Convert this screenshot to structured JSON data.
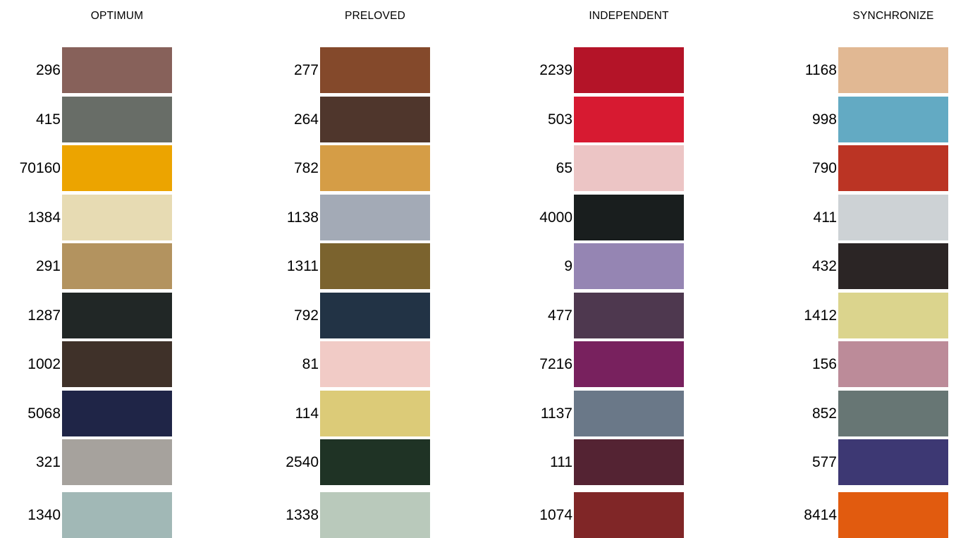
{
  "columns": [
    {
      "title": "OPTIMUM",
      "swatches": [
        {
          "code": "296",
          "color": "#87615a"
        },
        {
          "code": "415",
          "color": "#686d67"
        },
        {
          "code": "70160",
          "color": "#eca400"
        },
        {
          "code": "1384",
          "color": "#e7dbb3"
        },
        {
          "code": "291",
          "color": "#b3935f"
        },
        {
          "code": "1287",
          "color": "#212726"
        },
        {
          "code": "1002",
          "color": "#3f3129"
        },
        {
          "code": "5068",
          "color": "#1f2547"
        },
        {
          "code": "321",
          "color": "#a6a29d"
        },
        {
          "code": "1340",
          "color": "#a1b8b6"
        }
      ]
    },
    {
      "title": "PRELOVED",
      "swatches": [
        {
          "code": "277",
          "color": "#84492b"
        },
        {
          "code": "264",
          "color": "#4f362c"
        },
        {
          "code": "782",
          "color": "#d59d46"
        },
        {
          "code": "1138",
          "color": "#a3aab6"
        },
        {
          "code": "1311",
          "color": "#7b632e"
        },
        {
          "code": "792",
          "color": "#223345"
        },
        {
          "code": "81",
          "color": "#f1cbc6"
        },
        {
          "code": "114",
          "color": "#dccb78"
        },
        {
          "code": "2540",
          "color": "#1f3325"
        },
        {
          "code": "1338",
          "color": "#b9c9bb"
        }
      ]
    },
    {
      "title": "INDEPENDENT",
      "swatches": [
        {
          "code": "2239",
          "color": "#b41428"
        },
        {
          "code": "503",
          "color": "#d71a31"
        },
        {
          "code": "65",
          "color": "#ecc5c5"
        },
        {
          "code": "4000",
          "color": "#191e1e"
        },
        {
          "code": "9",
          "color": "#9585b3"
        },
        {
          "code": "477",
          "color": "#4e384f"
        },
        {
          "code": "7216",
          "color": "#78215e"
        },
        {
          "code": "1137",
          "color": "#6a7888"
        },
        {
          "code": "111",
          "color": "#542333"
        },
        {
          "code": "1074",
          "color": "#802627"
        }
      ]
    },
    {
      "title": "SYNCHRONIZE",
      "swatches": [
        {
          "code": "1168",
          "color": "#e1b893"
        },
        {
          "code": "998",
          "color": "#63aac3"
        },
        {
          "code": "790",
          "color": "#bb3424"
        },
        {
          "code": "411",
          "color": "#cdd2d5"
        },
        {
          "code": "432",
          "color": "#2b2525"
        },
        {
          "code": "1412",
          "color": "#dbd48d"
        },
        {
          "code": "156",
          "color": "#bc8b99"
        },
        {
          "code": "852",
          "color": "#677674"
        },
        {
          "code": "577",
          "color": "#3d3873"
        },
        {
          "code": "8414",
          "color": "#e15b0f"
        }
      ]
    }
  ]
}
